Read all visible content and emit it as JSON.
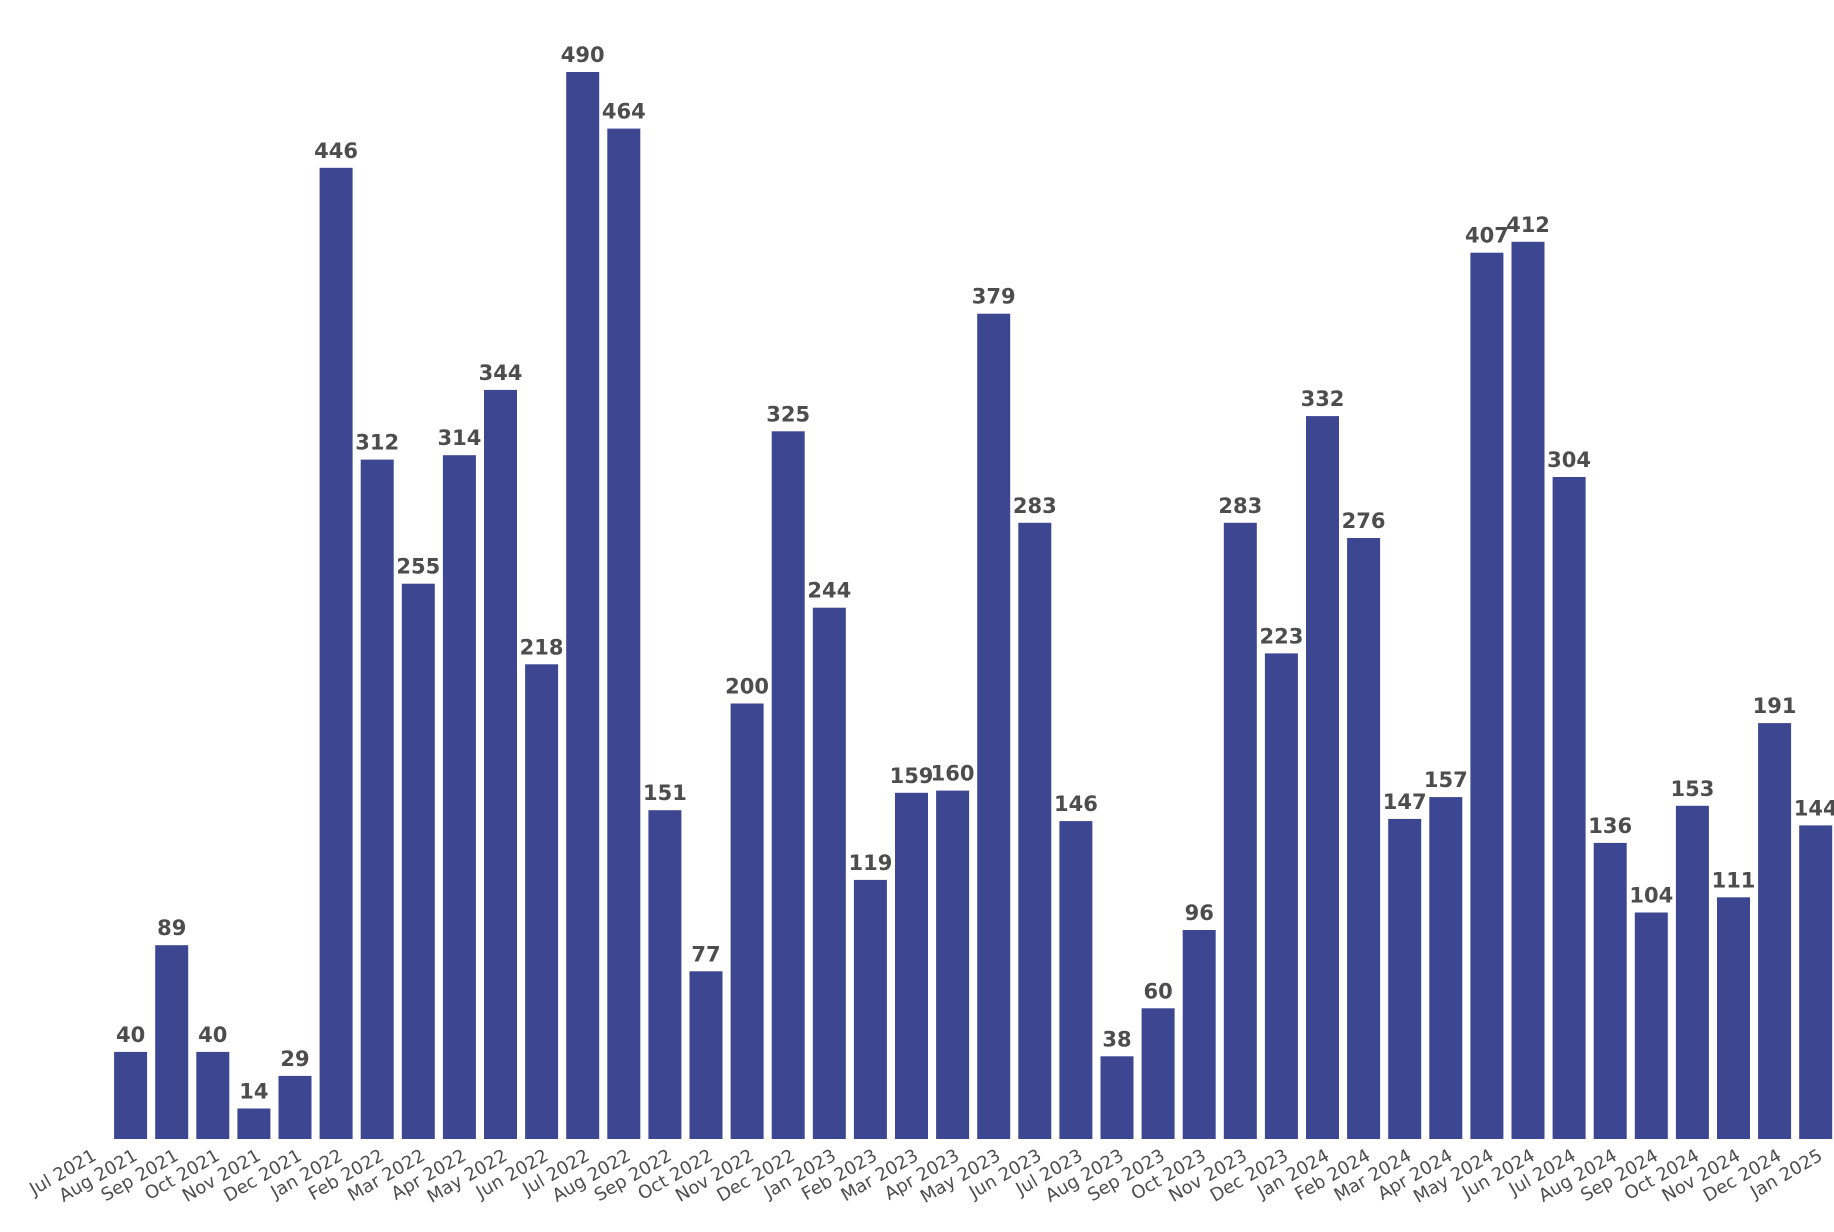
{
  "chart_data": {
    "type": "bar",
    "title": "",
    "xlabel": "",
    "ylabel": "",
    "ylim": [
      0,
      490
    ],
    "grid": false,
    "legend": "none",
    "colors": {
      "bar": "#3d4690",
      "label": "#4d4d4d",
      "background": "#ffffff"
    },
    "categories": [
      "Jul 2021",
      "Aug 2021",
      "Sep 2021",
      "Oct 2021",
      "Nov 2021",
      "Dec 2021",
      "Jan 2022",
      "Feb 2022",
      "Mar 2022",
      "Apr 2022",
      "May 2022",
      "Jun 2022",
      "Jul 2022",
      "Aug 2022",
      "Sep 2022",
      "Oct 2022",
      "Nov 2022",
      "Dec 2022",
      "Jan 2023",
      "Feb 2023",
      "Mar 2023",
      "Apr 2023",
      "May 2023",
      "Jun 2023",
      "Jul 2023",
      "Aug 2023",
      "Sep 2023",
      "Oct 2023",
      "Nov 2023",
      "Dec 2023",
      "Jan 2024",
      "Feb 2024",
      "Mar 2024",
      "Apr 2024",
      "May 2024",
      "Jun 2024",
      "Jul 2024",
      "Aug 2024",
      "Sep 2024",
      "Oct 2024",
      "Nov 2024",
      "Dec 2024",
      "Jan 2025"
    ],
    "values": [
      null,
      40,
      89,
      40,
      14,
      29,
      446,
      312,
      255,
      314,
      344,
      218,
      490,
      464,
      151,
      77,
      200,
      325,
      244,
      119,
      159,
      160,
      379,
      283,
      146,
      38,
      60,
      96,
      283,
      223,
      332,
      276,
      147,
      157,
      407,
      412,
      304,
      136,
      104,
      153,
      111,
      191,
      144
    ]
  }
}
